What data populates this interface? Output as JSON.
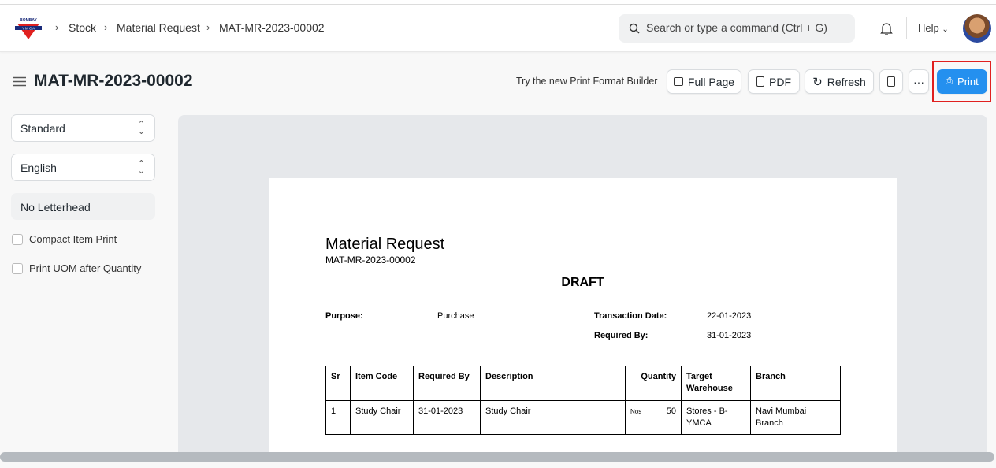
{
  "navbar": {
    "logo_text": "BOMBAY YMCA",
    "breadcrumbs": [
      "Stock",
      "Material Request",
      "MAT-MR-2023-00002"
    ],
    "search_placeholder": "Search or type a command (Ctrl + G)",
    "help": "Help"
  },
  "page": {
    "title": "MAT-MR-2023-00002",
    "builder_link": "Try the new Print Format Builder",
    "buttons": {
      "full_page": "Full Page",
      "pdf": "PDF",
      "refresh": "Refresh",
      "more": "···",
      "print": "Print"
    },
    "accent": "#2490ef",
    "highlight": "#e0201f"
  },
  "sidebar": {
    "print_format": "Standard",
    "language": "English",
    "letterhead": "No Letterhead",
    "options": [
      {
        "label": "Compact Item Print",
        "checked": false
      },
      {
        "label": "Print UOM after Quantity",
        "checked": false
      }
    ]
  },
  "doc": {
    "title": "Material Request",
    "name": "MAT-MR-2023-00002",
    "status": "DRAFT",
    "fields": {
      "purpose_label": "Purpose:",
      "purpose": "Purchase",
      "transaction_date_label": "Transaction Date:",
      "transaction_date": "22-01-2023",
      "required_by_label": "Required By:",
      "required_by": "31-01-2023"
    },
    "table": {
      "headers": [
        "Sr",
        "Item Code",
        "Required By",
        "Description",
        "Quantity",
        "Target Warehouse",
        "Branch"
      ],
      "rows": [
        {
          "sr": "1",
          "item_code": "Study Chair",
          "required_by": "31-01-2023",
          "description": "Study Chair",
          "uom": "Nos",
          "qty": "50",
          "warehouse": "Stores - B-YMCA",
          "branch": "Navi Mumbai Branch"
        }
      ]
    }
  }
}
